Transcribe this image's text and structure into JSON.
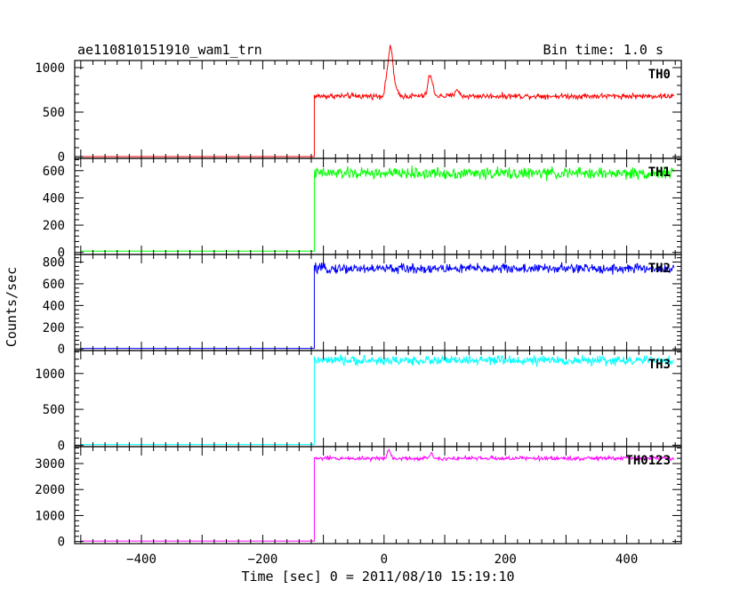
{
  "chart_data": {
    "type": "line",
    "title": "ae110810151910_wam1_trn",
    "subtitle": "Bin time: 1.0 s",
    "xlabel": "Time [sec] 0 = 2011/08/10 15:19:10",
    "ylabel": "Counts/sec",
    "xlim": [
      -510,
      490
    ],
    "x_ticks": [
      -400,
      -200,
      0,
      200,
      400
    ],
    "x_tick_labels": [
      "−400",
      "−200",
      "0",
      "200",
      "400"
    ],
    "grid": false,
    "x_start": -500,
    "x_end": 478,
    "onset_time": -115,
    "series": [
      {
        "name": "TH0",
        "color": "#ff0000",
        "ylim": [
          -20,
          1080
        ],
        "y_ticks": [
          0,
          500,
          1000
        ],
        "pre_onset_level": 0,
        "baseline": 680,
        "noise_amplitude": 22,
        "features": [
          {
            "x": 10,
            "y": 1070
          },
          {
            "x": 5,
            "y": 880
          },
          {
            "x": 14,
            "y": 920
          },
          {
            "x": 20,
            "y": 740
          },
          {
            "x": 75,
            "y": 890
          },
          {
            "x": 80,
            "y": 760
          },
          {
            "x": 120,
            "y": 760
          }
        ]
      },
      {
        "name": "TH1",
        "color": "#00ff00",
        "ylim": [
          -15,
          690
        ],
        "y_ticks": [
          0,
          200,
          400,
          600
        ],
        "pre_onset_level": 10,
        "baseline": 580,
        "noise_amplitude": 30,
        "features": []
      },
      {
        "name": "TH2",
        "color": "#0000ff",
        "ylim": [
          -15,
          870
        ],
        "y_ticks": [
          0,
          200,
          400,
          600,
          800
        ],
        "pre_onset_level": 5,
        "baseline": 740,
        "noise_amplitude": 32,
        "features": []
      },
      {
        "name": "TH3",
        "color": "#00ffff",
        "ylim": [
          -20,
          1320
        ],
        "y_ticks": [
          0,
          500,
          1000
        ],
        "pre_onset_level": 10,
        "baseline": 1180,
        "noise_amplitude": 45,
        "features": []
      },
      {
        "name": "TH0123",
        "color": "#ff00ff",
        "ylim": [
          -80,
          3650
        ],
        "y_ticks": [
          0,
          1000,
          2000,
          3000
        ],
        "pre_onset_level": 20,
        "baseline": 3200,
        "noise_amplitude": 55,
        "features": [
          {
            "x": 8,
            "y": 3520
          },
          {
            "x": 78,
            "y": 3380
          }
        ]
      }
    ]
  }
}
